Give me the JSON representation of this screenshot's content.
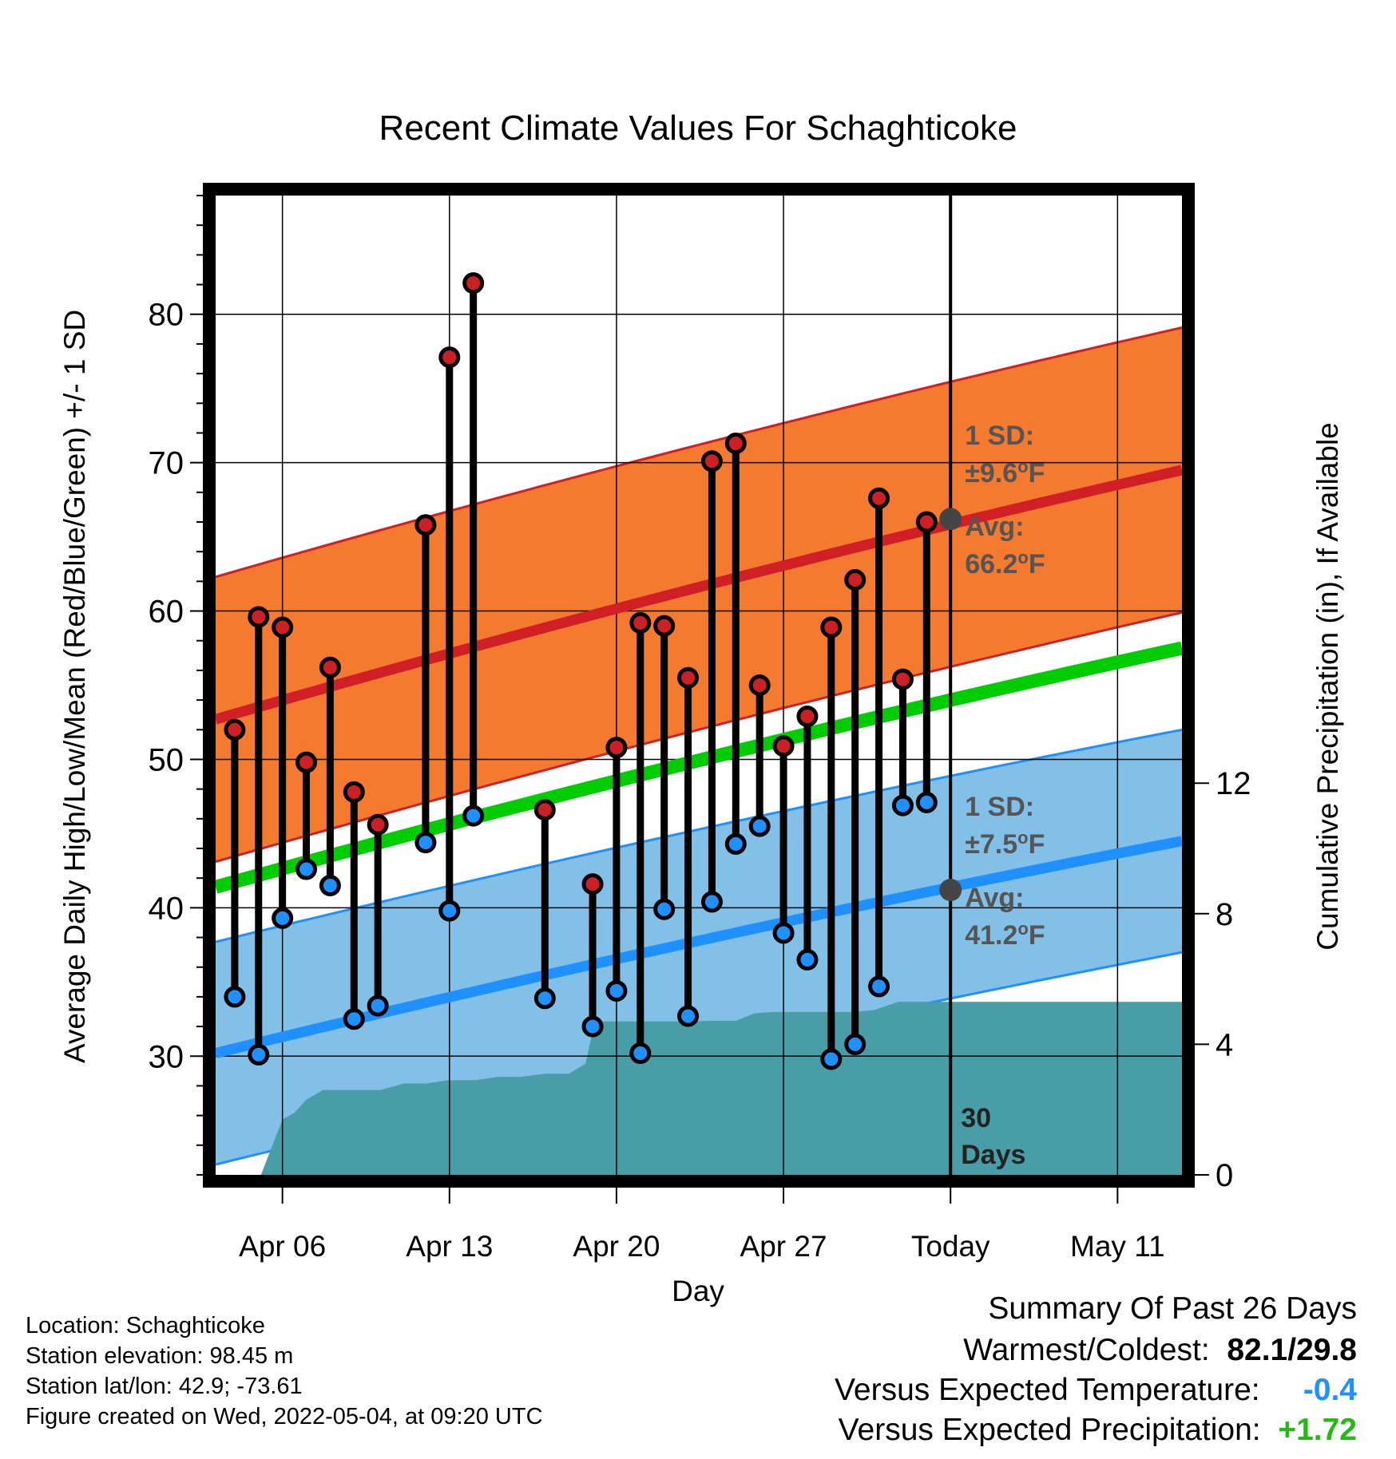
{
  "chart_data": {
    "type": "line",
    "title": "Recent Climate Values For Schaghticoke",
    "xlabel": "Day",
    "ylabel_left": "Average Daily High/Low/Mean (Red/Blue/Green) +/- 1 SD",
    "ylabel_right": "Cumulative Precipitation (in), If Available",
    "x_ticks": [
      {
        "day": 5,
        "label": "Apr 06"
      },
      {
        "day": 12,
        "label": "Apr 13"
      },
      {
        "day": 19,
        "label": "Apr 20"
      },
      {
        "day": 26,
        "label": "Apr 27"
      },
      {
        "day": 33,
        "label": "Today"
      },
      {
        "day": 40,
        "label": "May 11"
      }
    ],
    "xlim_days": [
      2.2,
      42.7
    ],
    "today_day": 33,
    "ylim_temp": [
      22,
      88
    ],
    "y_ticks_temp": [
      30,
      40,
      50,
      60,
      70,
      80
    ],
    "ylim_precip": [
      0,
      30
    ],
    "y_ticks_precip": [
      0,
      4,
      8,
      12
    ],
    "grid": true,
    "normal_high": {
      "start": 52.7,
      "end": 69.5,
      "sd": 9.6
    },
    "normal_low": {
      "start": 30.2,
      "end": 44.5,
      "sd": 7.5
    },
    "normal_mean": {
      "start": 41.4,
      "end": 57.5
    },
    "daily": [
      {
        "day": 3,
        "high": 52.0,
        "low": 34.0
      },
      {
        "day": 4,
        "high": 59.6,
        "low": 30.1
      },
      {
        "day": 5,
        "high": 58.9,
        "low": 39.3
      },
      {
        "day": 6,
        "high": 49.8,
        "low": 42.6
      },
      {
        "day": 7,
        "high": 56.2,
        "low": 41.5
      },
      {
        "day": 8,
        "high": 47.8,
        "low": 32.5
      },
      {
        "day": 9,
        "high": 45.6,
        "low": 33.4
      },
      {
        "day": 11,
        "high": 65.8,
        "low": 44.4
      },
      {
        "day": 12,
        "high": 77.1,
        "low": 39.8
      },
      {
        "day": 13,
        "high": 82.1,
        "low": 46.2
      },
      {
        "day": 16,
        "high": 46.6,
        "low": 33.9
      },
      {
        "day": 18,
        "high": 41.6,
        "low": 32.0
      },
      {
        "day": 19,
        "high": 50.8,
        "low": 34.4
      },
      {
        "day": 20,
        "high": 59.2,
        "low": 30.2
      },
      {
        "day": 21,
        "high": 59.0,
        "low": 39.9
      },
      {
        "day": 22,
        "high": 55.5,
        "low": 32.7
      },
      {
        "day": 23,
        "high": 70.1,
        "low": 40.4
      },
      {
        "day": 24,
        "high": 71.3,
        "low": 44.3
      },
      {
        "day": 25,
        "high": 55.0,
        "low": 45.5
      },
      {
        "day": 26,
        "high": 50.9,
        "low": 38.3
      },
      {
        "day": 27,
        "high": 52.9,
        "low": 36.5
      },
      {
        "day": 28,
        "high": 58.9,
        "low": 29.8
      },
      {
        "day": 29,
        "high": 62.1,
        "low": 30.8
      },
      {
        "day": 30,
        "high": 67.6,
        "low": 34.7
      },
      {
        "day": 31,
        "high": 55.4,
        "low": 46.9
      },
      {
        "day": 32,
        "high": 66.0,
        "low": 47.1
      }
    ],
    "precip_cumulative": [
      [
        4.1,
        0
      ],
      [
        5.0,
        1.7
      ],
      [
        5.5,
        1.9
      ],
      [
        6.0,
        2.3
      ],
      [
        6.7,
        2.6
      ],
      [
        9.1,
        2.6
      ],
      [
        10.1,
        2.8
      ],
      [
        11.0,
        2.8
      ],
      [
        12.0,
        2.9
      ],
      [
        13.1,
        2.9
      ],
      [
        14.0,
        3.0
      ],
      [
        15.0,
        3.0
      ],
      [
        16.0,
        3.1
      ],
      [
        17.0,
        3.1
      ],
      [
        17.7,
        3.4
      ],
      [
        18.1,
        4.7
      ],
      [
        19.0,
        4.7
      ],
      [
        20.0,
        4.7
      ],
      [
        21.0,
        4.7
      ],
      [
        22.0,
        4.7
      ],
      [
        23.0,
        4.72
      ],
      [
        24.0,
        4.72
      ],
      [
        24.8,
        4.95
      ],
      [
        25.6,
        4.99
      ],
      [
        26.0,
        4.99
      ],
      [
        27.0,
        4.99
      ],
      [
        28.0,
        4.99
      ],
      [
        29.0,
        4.99
      ],
      [
        29.8,
        5.05
      ],
      [
        30.8,
        5.3
      ],
      [
        33.0,
        5.3
      ],
      [
        42.7,
        5.3
      ]
    ],
    "annotations": {
      "high_sd_label": "1 SD:",
      "high_sd_value": "±9.6",
      "high_sd_unit": "F",
      "high_avg_label": "Avg:",
      "high_avg_value": "66.2",
      "high_avg_unit": "F",
      "low_sd_label": "1 SD:",
      "low_sd_value": "±7.5",
      "low_sd_unit": "F",
      "low_avg_label": "Avg:",
      "low_avg_value": "41.2",
      "low_avg_unit": "F",
      "degree_symbol": "o",
      "window_value": "30",
      "window_unit": "Days"
    },
    "colors": {
      "high_band": "#f47a2f",
      "high_line": "#d02025",
      "low_band": "#83c0e8",
      "low_line": "#1e90ff",
      "mean_line": "#00cd00",
      "precip": "#489da6",
      "high_marker": "#cc1f26",
      "low_marker": "#1e90ff",
      "marker_edge": "#000000",
      "avg_dot": "#444444",
      "annotation_text": "#555555",
      "temp_negative": "#1e90ff",
      "precip_positive": "#22bb11"
    }
  },
  "station_info": {
    "location_label": "Location:",
    "location": "Schaghticoke",
    "elevation_label": "Station elevation:",
    "elevation": "98.45 m",
    "latlon_label": "Station lat/lon:",
    "latlon": "42.9; -73.61",
    "created_label": "Figure created on",
    "created": "Wed, 2022-05-04, at 09:20 UTC"
  },
  "summary": {
    "title": "Summary Of Past 26 Days",
    "warmest_coldest_label": "Warmest/Coldest:",
    "warmest_coldest_value": "82.1/29.8",
    "temp_label": "Versus Expected Temperature:",
    "temp_value": "-0.4",
    "precip_label": "Versus Expected Precipitation:",
    "precip_value": "+1.72"
  }
}
